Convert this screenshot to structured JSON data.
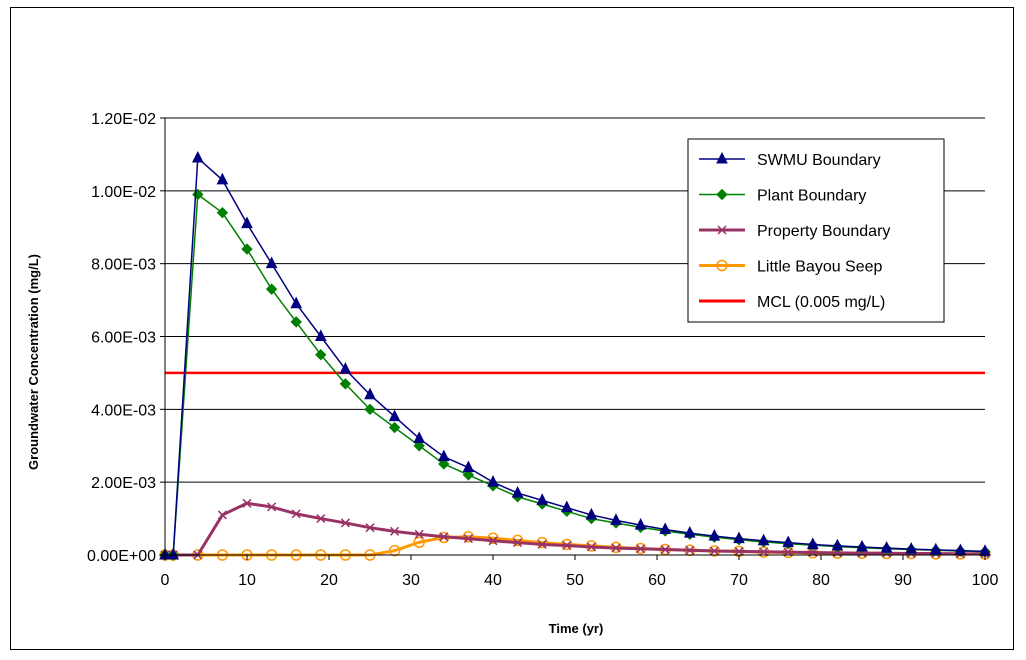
{
  "chart_data": {
    "type": "line",
    "title": "",
    "xlabel": "Time (yr)",
    "ylabel": "Groundwater Concentration (mg/L)",
    "xlim": [
      0,
      100
    ],
    "ylim": [
      0,
      0.012
    ],
    "x_ticks": [
      "0",
      "10",
      "20",
      "30",
      "40",
      "50",
      "60",
      "70",
      "80",
      "90",
      "100"
    ],
    "y_ticks": [
      "0.00E+00",
      "2.00E-03",
      "4.00E-03",
      "6.00E-03",
      "8.00E-03",
      "1.00E-02",
      "1.20E-02"
    ],
    "grid": "horizontal",
    "legend_position": "top-right",
    "x": [
      0,
      1,
      4,
      7,
      10,
      13,
      16,
      19,
      22,
      25,
      28,
      31,
      34,
      37,
      40,
      43,
      46,
      49,
      52,
      55,
      58,
      61,
      64,
      67,
      70,
      73,
      76,
      79,
      82,
      85,
      88,
      91,
      94,
      97,
      100
    ],
    "series": [
      {
        "name": "SWMU Boundary",
        "color": "#000080",
        "marker": "triangle",
        "values": [
          0,
          0,
          0.0109,
          0.0103,
          0.0091,
          0.008,
          0.0069,
          0.006,
          0.0051,
          0.0044,
          0.0038,
          0.0032,
          0.0027,
          0.0024,
          0.002,
          0.0017,
          0.0015,
          0.0013,
          0.0011,
          0.00095,
          0.00082,
          0.0007,
          0.0006,
          0.00052,
          0.00045,
          0.00039,
          0.00034,
          0.00029,
          0.00025,
          0.00022,
          0.00019,
          0.00016,
          0.00014,
          0.00012,
          0.0001
        ]
      },
      {
        "name": "Plant Boundary",
        "color": "#008000",
        "marker": "diamond",
        "values": [
          0,
          0,
          0.0099,
          0.0094,
          0.0084,
          0.0073,
          0.0064,
          0.0055,
          0.0047,
          0.004,
          0.0035,
          0.003,
          0.0025,
          0.0022,
          0.0019,
          0.0016,
          0.0014,
          0.0012,
          0.001,
          0.00088,
          0.00076,
          0.00066,
          0.00057,
          0.00049,
          0.00042,
          0.00036,
          0.00031,
          0.00027,
          0.00023,
          0.0002,
          0.00017,
          0.00015,
          0.00013,
          0.00011,
          9e-05
        ]
      },
      {
        "name": "Property Boundary",
        "color": "#993366",
        "marker": "x",
        "values": [
          0,
          0,
          0,
          0.0011,
          0.00142,
          0.00132,
          0.00113,
          0.001,
          0.00088,
          0.00075,
          0.00065,
          0.00057,
          0.0005,
          0.00045,
          0.00039,
          0.00034,
          0.00029,
          0.00026,
          0.00022,
          0.00019,
          0.00017,
          0.00015,
          0.00013,
          0.00011,
          0.0001,
          9e-05,
          8e-05,
          7e-05,
          6e-05,
          5e-05,
          5e-05,
          4e-05,
          4e-05,
          3e-05,
          3e-05
        ]
      },
      {
        "name": "Little Bayou Seep",
        "color": "#FF9900",
        "marker": "circle",
        "values": [
          0,
          0,
          0,
          0,
          0,
          0,
          0,
          0,
          0,
          0,
          0.00012,
          0.00035,
          0.00048,
          0.0005,
          0.00046,
          0.0004,
          0.00034,
          0.00029,
          0.00025,
          0.00021,
          0.00018,
          0.00015,
          0.00013,
          0.00011,
          0.0001,
          8e-05,
          7e-05,
          6e-05,
          5e-05,
          5e-05,
          4e-05,
          4e-05,
          3e-05,
          3e-05,
          3e-05
        ]
      },
      {
        "name": "MCL (0.005 mg/L)",
        "color": "#FF0000",
        "marker": "none",
        "constant": 0.005
      }
    ]
  }
}
